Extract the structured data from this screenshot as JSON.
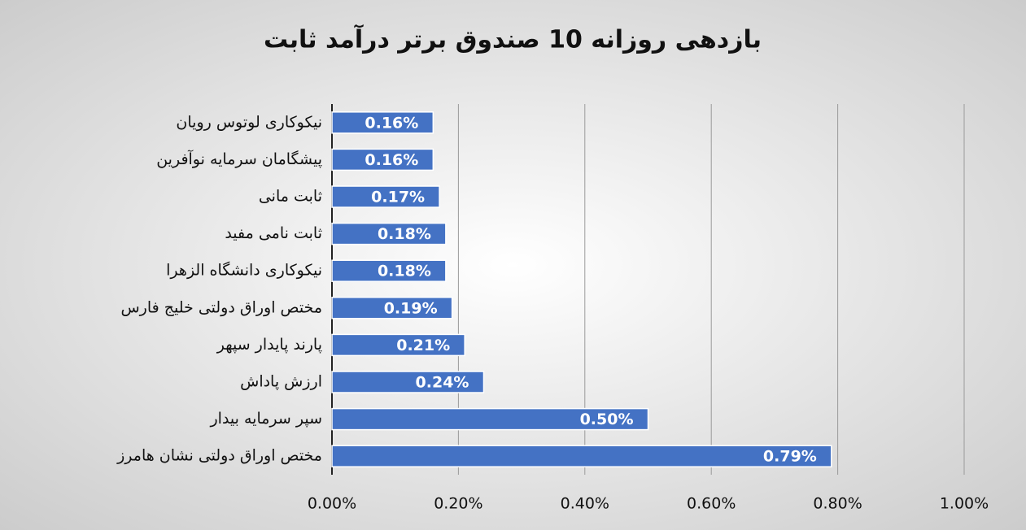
{
  "chart_data": {
    "type": "bar",
    "orientation": "horizontal",
    "title": "بازدهی روزانه 10 صندوق برتر درآمد ثابت",
    "categories": [
      "نیکوکاری لوتوس رویان",
      "پیشگامان سرمایه نوآفرین",
      "ثابت مانی",
      "ثابت نامی مفید",
      "نیکوکاری دانشگاه الزهرا",
      "مختص اوراق دولتی خلیج فارس",
      "پارند پایدار سپهر",
      "ارزش پاداش",
      "سپر سرمایه بیدار",
      "مختص اوراق دولتی نشان هامرز"
    ],
    "values": [
      0.16,
      0.16,
      0.17,
      0.18,
      0.18,
      0.19,
      0.21,
      0.24,
      0.5,
      0.79
    ],
    "value_labels": [
      "0.16%",
      "0.16%",
      "0.17%",
      "0.18%",
      "0.18%",
      "0.19%",
      "0.21%",
      "0.24%",
      "0.50%",
      "0.79%"
    ],
    "color": "#4472c4",
    "xlim": [
      0,
      1
    ],
    "xticks": [
      {
        "value": 0,
        "label": "0.00%"
      },
      {
        "value": 0.2,
        "label": "0.20%"
      },
      {
        "value": 0.4,
        "label": "0.40%"
      },
      {
        "value": 0.6,
        "label": "0.60%"
      },
      {
        "value": 0.8,
        "label": "0.80%"
      },
      {
        "value": 1,
        "label": "1.00%"
      }
    ],
    "grid": true
  }
}
